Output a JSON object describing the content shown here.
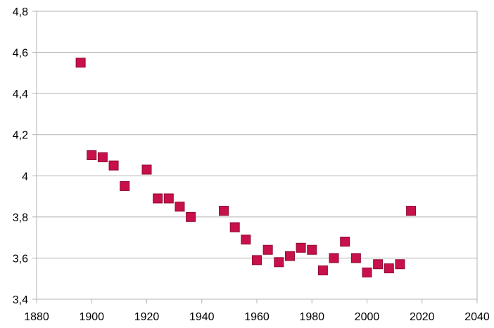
{
  "chart_data": {
    "type": "scatter",
    "title": "",
    "xlabel": "",
    "ylabel": "",
    "xlim": [
      1880,
      2040
    ],
    "ylim": [
      3.4,
      4.8
    ],
    "x_ticks": [
      1880,
      1900,
      1920,
      1940,
      1960,
      1980,
      2000,
      2020,
      2040
    ],
    "x_tick_labels": [
      "1880",
      "1900",
      "1920",
      "1940",
      "1960",
      "1980",
      "2000",
      "2020",
      "2040"
    ],
    "y_ticks": [
      3.4,
      3.6,
      3.8,
      4.0,
      4.2,
      4.4,
      4.6,
      4.8
    ],
    "y_tick_labels": [
      "3,4",
      "3,6",
      "3,8",
      "4",
      "4,2",
      "4,4",
      "4,6",
      "4,8"
    ],
    "grid": "horizontal",
    "legend": "none",
    "marker": "square",
    "marker_color": "#C8104A",
    "series": [
      {
        "x": [
          1896,
          1900,
          1904,
          1908,
          1912,
          1920,
          1924,
          1928,
          1932,
          1936,
          1948,
          1952,
          1956,
          1960,
          1964,
          1968,
          1972,
          1976,
          1980,
          1984,
          1988,
          1992,
          1996,
          2000,
          2004,
          2008,
          2012,
          2016
        ],
        "y": [
          4.55,
          4.1,
          4.09,
          4.05,
          3.95,
          4.03,
          3.89,
          3.89,
          3.85,
          3.8,
          3.83,
          3.75,
          3.69,
          3.59,
          3.64,
          3.58,
          3.61,
          3.65,
          3.64,
          3.54,
          3.6,
          3.68,
          3.6,
          3.53,
          3.57,
          3.55,
          3.57,
          3.83
        ]
      }
    ]
  }
}
